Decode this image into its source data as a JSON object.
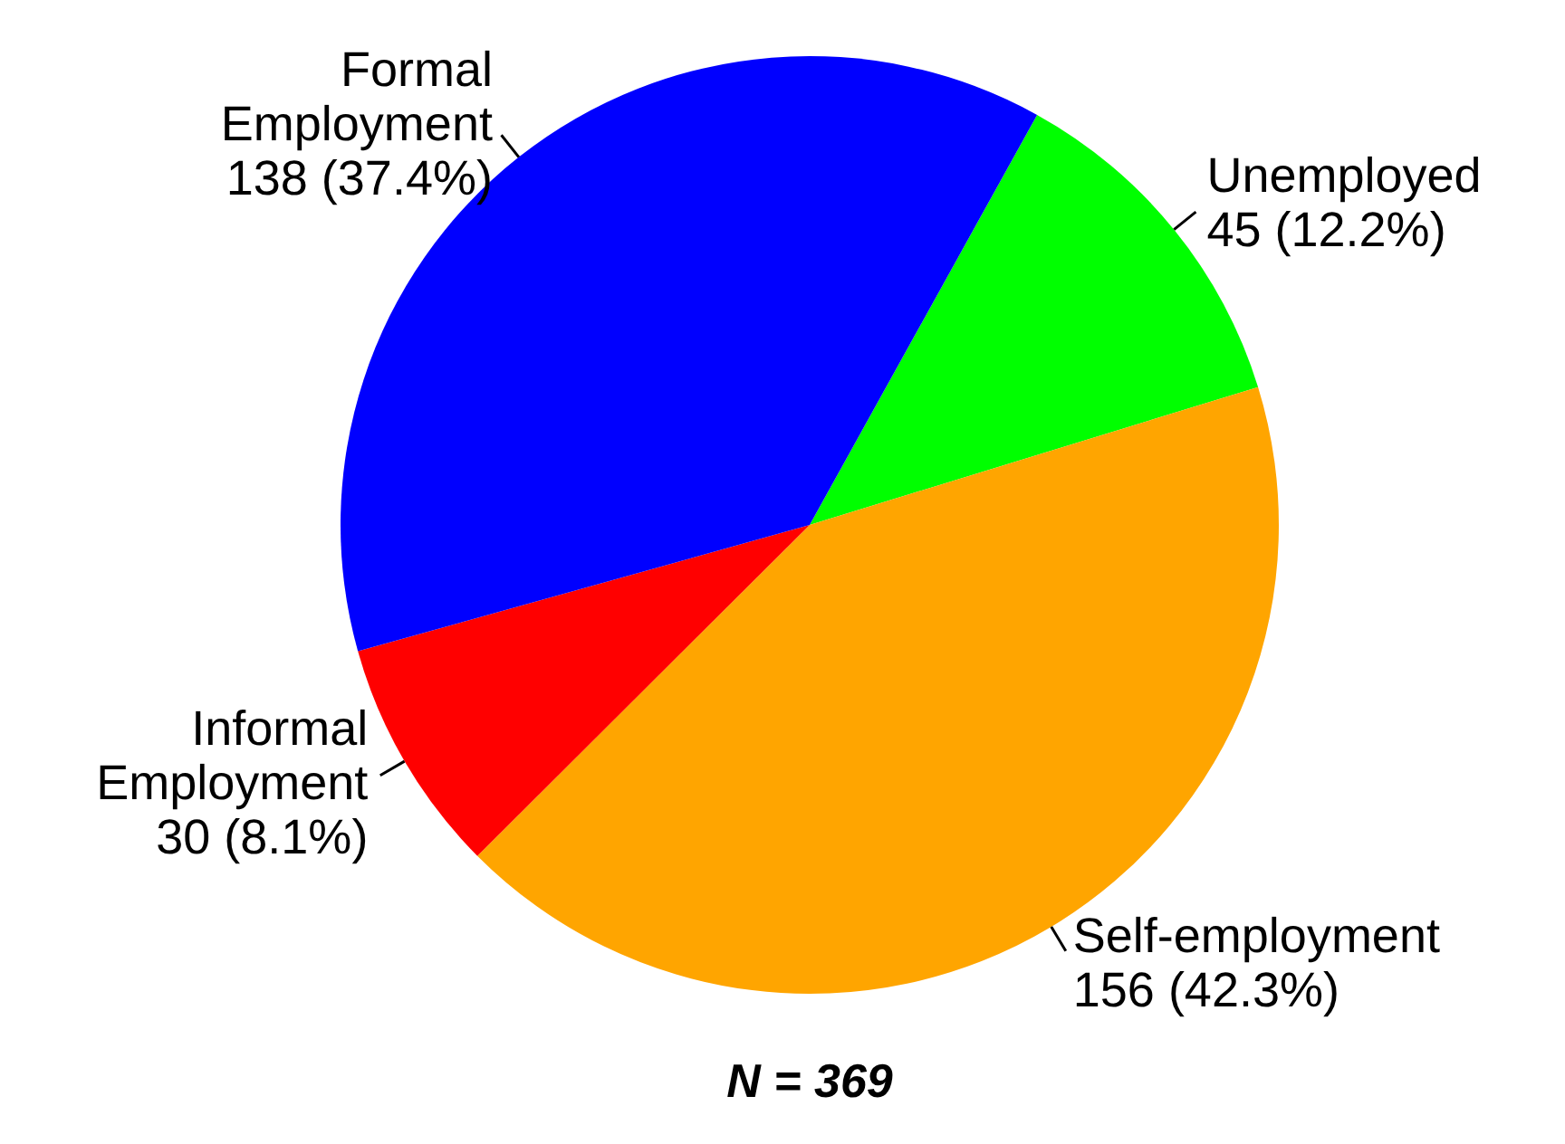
{
  "chart_data": {
    "type": "pie",
    "categories": [
      "Unemployed",
      "Self-employment",
      "Informal Employment",
      "Formal Employment"
    ],
    "values": [
      45,
      156,
      30,
      138
    ],
    "value_labels": [
      "45 (12.2%)",
      "156 (42.3%)",
      "30 (8.1%)",
      "138 (37.4%)"
    ],
    "colors": [
      "#00ff00",
      "#ffa500",
      "#ff0000",
      "#0000ff"
    ],
    "annotations": [
      "N = 369"
    ]
  }
}
